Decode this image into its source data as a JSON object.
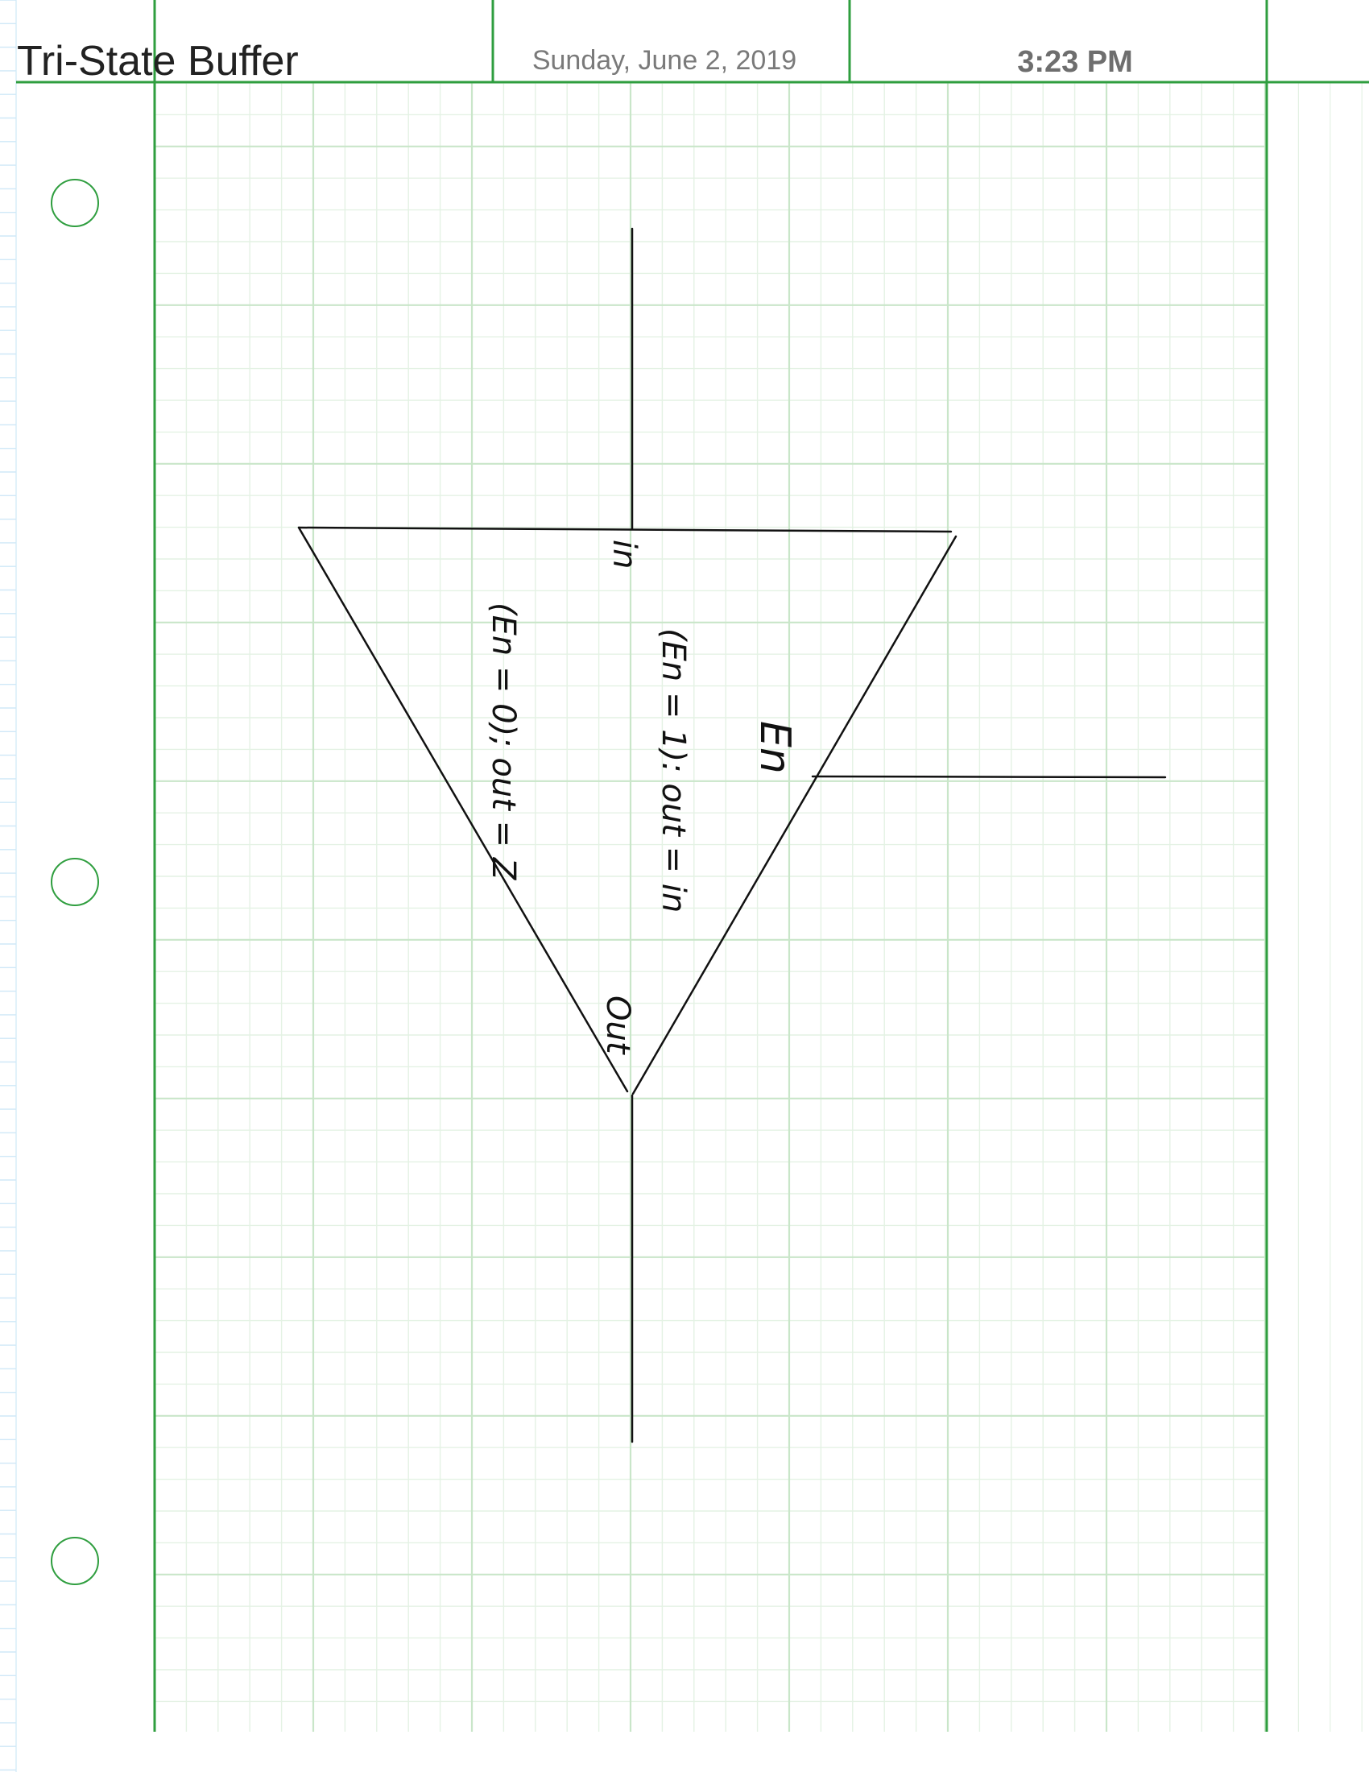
{
  "header": {
    "title": "Tri-State Buffer",
    "date": "Sunday, June 2, 2019",
    "time": "3:23 PM"
  },
  "diagram": {
    "labels": {
      "in": "in",
      "en": "En",
      "out": "Out",
      "enabled_rule": "(En = 1): out = in",
      "disabled_rule": "(En = 0); out = Z"
    }
  },
  "colors": {
    "margin_green": "#2f9e3f",
    "grid_minor": "#e4f2e4",
    "grid_major": "#c9e6c9",
    "left_strip_blue": "#cfe8f7",
    "ink": "#111111"
  }
}
